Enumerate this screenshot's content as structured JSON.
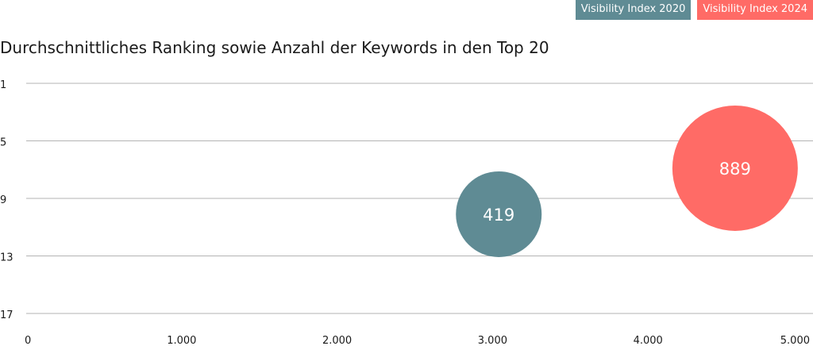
{
  "chart_data": {
    "type": "scatter",
    "title": "Durchschnittliches Ranking sowie Anzahl der Keywords in den Top 20",
    "xlabel": "",
    "ylabel": "",
    "xlim": [
      0,
      5000
    ],
    "ylim": [
      1,
      17
    ],
    "y_inverted": true,
    "x_ticks": [
      {
        "value": 0,
        "label": "0"
      },
      {
        "value": 1000,
        "label": "1.000"
      },
      {
        "value": 2000,
        "label": "2.000"
      },
      {
        "value": 3000,
        "label": "3.000"
      },
      {
        "value": 4000,
        "label": "4.000"
      },
      {
        "value": 5000,
        "label": "5.000"
      }
    ],
    "y_ticks": [
      {
        "value": 1,
        "label": "1"
      },
      {
        "value": 5,
        "label": "5"
      },
      {
        "value": 9,
        "label": "9"
      },
      {
        "value": 13,
        "label": "13"
      },
      {
        "value": 17,
        "label": "17"
      }
    ],
    "grid": "horizontal",
    "legend_position": "top-right",
    "series": [
      {
        "name": "Visibility Index 2020",
        "color": "#5f8b94",
        "x": 3040,
        "y": 10.1,
        "size": 419,
        "label": "419"
      },
      {
        "name": "Visibility Index 2024",
        "color": "#ff6b66",
        "x": 4560,
        "y": 6.9,
        "size": 889,
        "label": "889"
      }
    ]
  }
}
